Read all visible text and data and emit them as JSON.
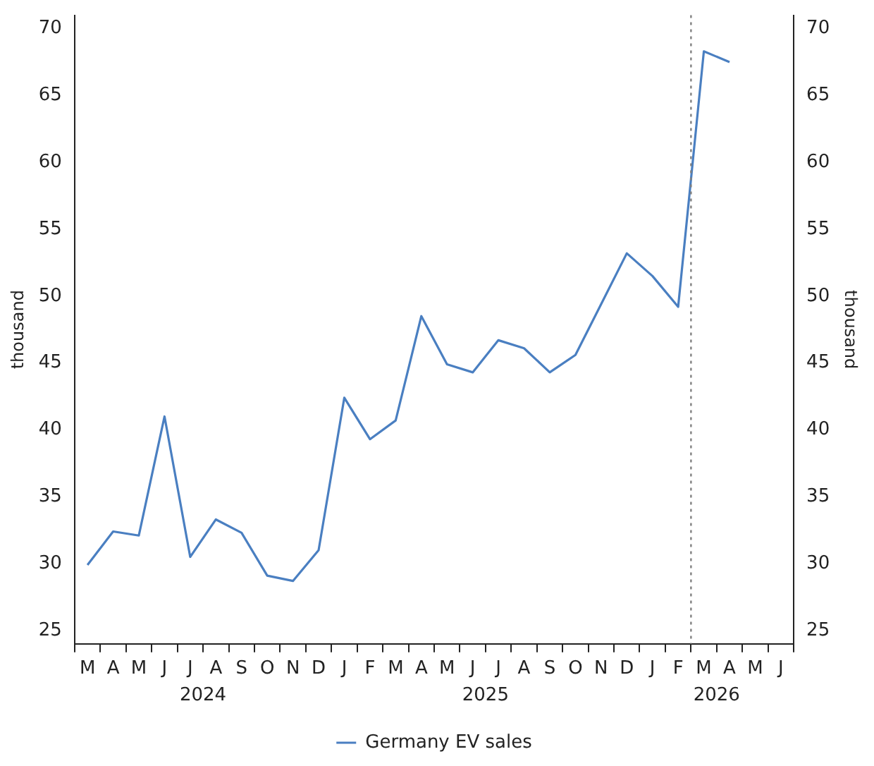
{
  "chart_data": {
    "type": "line",
    "categories": [
      "M",
      "A",
      "M",
      "J",
      "J",
      "A",
      "S",
      "O",
      "N",
      "D",
      "J",
      "F",
      "M",
      "A",
      "M",
      "J",
      "J",
      "A",
      "S",
      "O",
      "N",
      "D",
      "J",
      "F",
      "M",
      "A",
      "M",
      "J"
    ],
    "series": [
      {
        "name": "Germany EV sales",
        "color": "#4a7fc1",
        "values": [
          29.9,
          32.4,
          32.1,
          41.0,
          30.5,
          33.3,
          32.3,
          29.1,
          28.7,
          31.0,
          42.4,
          39.3,
          40.7,
          48.5,
          44.9,
          44.3,
          46.7,
          46.1,
          44.3,
          45.6,
          49.4,
          53.2,
          51.5,
          49.2,
          68.3,
          67.5,
          null,
          null
        ]
      }
    ],
    "ylim": [
      24,
      71
    ],
    "yticks": [
      25,
      30,
      35,
      40,
      45,
      50,
      55,
      60,
      65,
      70
    ],
    "y2lim": [
      24,
      71
    ],
    "y2ticks": [
      25,
      30,
      35,
      40,
      45,
      50,
      55,
      60,
      65,
      70
    ],
    "ylabel": "thousand",
    "y2label": "thousand",
    "annotations": [
      "2024",
      "2025",
      "2026"
    ],
    "legend": "bottom",
    "grid": false,
    "marker": "none",
    "line_style": "solid"
  }
}
